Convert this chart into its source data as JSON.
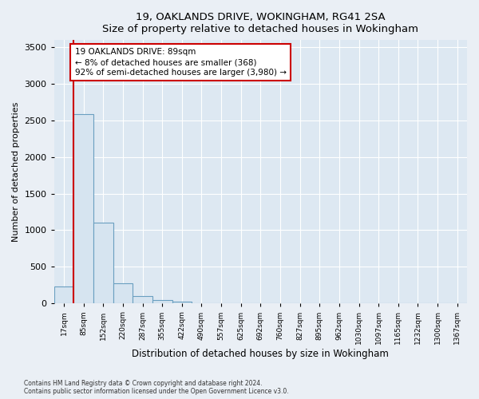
{
  "title": "19, OAKLANDS DRIVE, WOKINGHAM, RG41 2SA",
  "subtitle": "Size of property relative to detached houses in Wokingham",
  "xlabel": "Distribution of detached houses by size in Wokingham",
  "ylabel": "Number of detached properties",
  "bar_labels": [
    "17sqm",
    "85sqm",
    "152sqm",
    "220sqm",
    "287sqm",
    "355sqm",
    "422sqm",
    "490sqm",
    "557sqm",
    "625sqm",
    "692sqm",
    "760sqm",
    "827sqm",
    "895sqm",
    "962sqm",
    "1030sqm",
    "1097sqm",
    "1165sqm",
    "1232sqm",
    "1300sqm",
    "1367sqm"
  ],
  "bar_values": [
    230,
    2580,
    1100,
    270,
    100,
    50,
    20,
    0,
    0,
    0,
    0,
    0,
    0,
    0,
    0,
    0,
    0,
    0,
    0,
    0,
    0
  ],
  "bar_color": "#d6e4f0",
  "bar_edge_color": "#6a9fc0",
  "vline_color": "#cc0000",
  "annotation_text": "19 OAKLANDS DRIVE: 89sqm\n← 8% of detached houses are smaller (368)\n92% of semi-detached houses are larger (3,980) →",
  "annotation_box_color": "#ffffff",
  "annotation_box_edge": "#cc0000",
  "ylim": [
    0,
    3600
  ],
  "yticks": [
    0,
    500,
    1000,
    1500,
    2000,
    2500,
    3000,
    3500
  ],
  "bg_color": "#eaeff5",
  "plot_bg_color": "#dde8f2",
  "grid_color": "#ffffff",
  "footer_line1": "Contains HM Land Registry data © Crown copyright and database right 2024.",
  "footer_line2": "Contains public sector information licensed under the Open Government Licence v3.0."
}
